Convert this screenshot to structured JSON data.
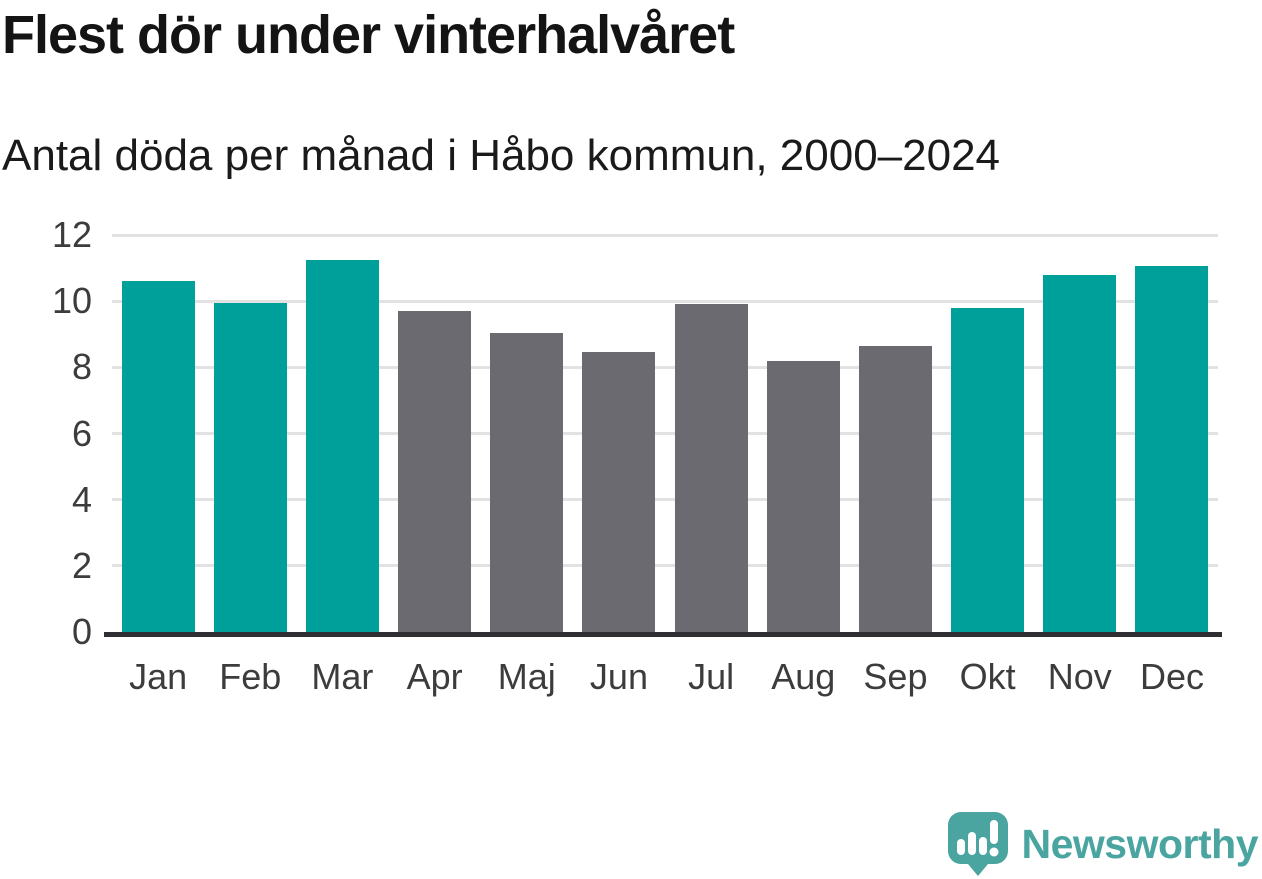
{
  "header": {
    "title": "Flest dör under vinterhalvåret",
    "subtitle": "Antal döda per månad i Håbo kommun, 2000–2024"
  },
  "chart_data": {
    "type": "bar",
    "title": "Flest dör under vinterhalvåret",
    "subtitle": "Antal döda per månad i Håbo kommun, 2000–2024",
    "categories": [
      "Jan",
      "Feb",
      "Mar",
      "Apr",
      "Maj",
      "Jun",
      "Jul",
      "Aug",
      "Sep",
      "Okt",
      "Nov",
      "Dec"
    ],
    "values": [
      10.6,
      9.95,
      11.25,
      9.7,
      9.05,
      8.45,
      9.9,
      8.2,
      8.65,
      9.8,
      10.8,
      11.05
    ],
    "bar_color_keys": [
      "teal",
      "teal",
      "teal",
      "gray",
      "gray",
      "gray",
      "gray",
      "gray",
      "gray",
      "teal",
      "teal",
      "teal"
    ],
    "colors": {
      "teal": "#00a09a",
      "gray": "#6b6a70"
    },
    "xlabel": "",
    "ylabel": "",
    "ylim": [
      0,
      12
    ],
    "yticks": [
      0,
      2,
      4,
      6,
      8,
      10,
      12
    ],
    "grid": "horizontal-only",
    "legend": "none"
  },
  "footer": {
    "brand": "Newsworthy",
    "brand_color": "#4aa5a0",
    "logo_icon": "newsworthy-speech-bubble-chart-icon"
  }
}
